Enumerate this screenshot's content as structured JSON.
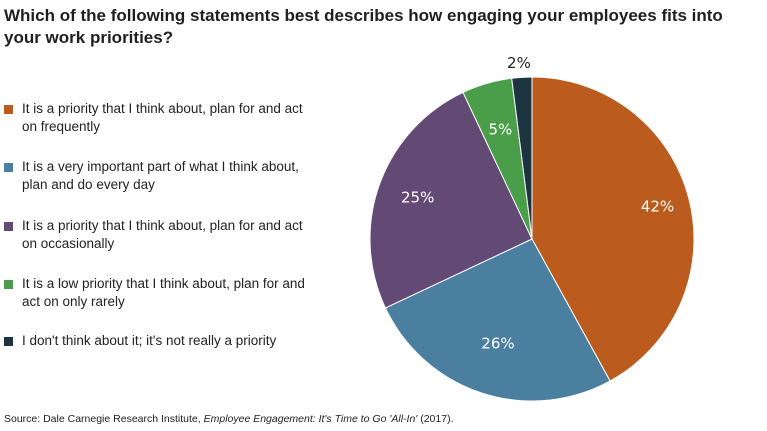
{
  "title": "Which of the following statements best describes how engaging your employees fits into your work priorities?",
  "source": {
    "prefix": "Source: Dale Carnegie Research Institute, ",
    "publication": "Employee Engagement: It's Time to Go 'All-In'",
    "suffix": " (2017)."
  },
  "chart_data": {
    "type": "pie",
    "legend_position": "left",
    "slices": [
      {
        "label": "It is a priority that I think about, plan for and act on frequently",
        "value": 42,
        "display": "42%",
        "color": "#bb5c1e",
        "label_color": "#ffffff"
      },
      {
        "label": "It is a very important part of what I think about, plan and do every day",
        "value": 26,
        "display": "26%",
        "color": "#4a7f9f",
        "label_color": "#ffffff"
      },
      {
        "label": "It is a priority that I think about, plan for and act on occasionally",
        "value": 25,
        "display": "25%",
        "color": "#624a75",
        "label_color": "#ffffff"
      },
      {
        "label": "It is a low priority that I think about, plan for and act on only rarely",
        "value": 5,
        "display": "5%",
        "color": "#4a9e49",
        "label_color": "#ffffff"
      },
      {
        "label": "I don't think about it; it's not really a priority",
        "value": 2,
        "display": "2%",
        "color": "#1b3440",
        "label_color": "#222222"
      }
    ]
  }
}
